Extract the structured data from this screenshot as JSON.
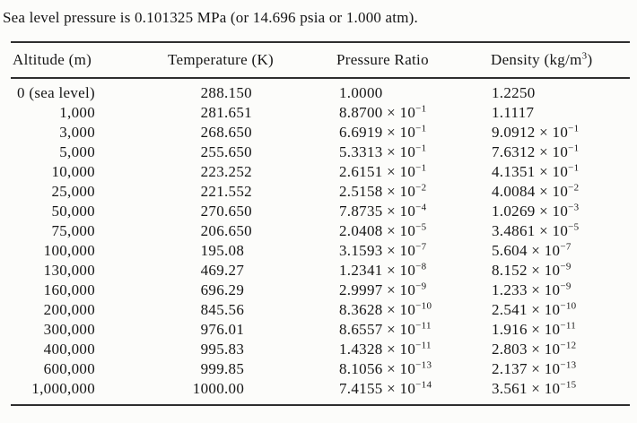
{
  "intro": "Sea level pressure is 0.101325 MPa (or 14.696 psia or 1.000 atm).",
  "table": {
    "times_ten": " × 10",
    "headers": [
      {
        "key": "altitude",
        "label": "Altitude (m)"
      },
      {
        "key": "temperature",
        "label": "Temperature (K)"
      },
      {
        "key": "pressure-ratio",
        "label": "Pressure Ratio"
      },
      {
        "key": "density",
        "label": "Density (kg/m",
        "sup": "3",
        "after": ")"
      }
    ],
    "rows": [
      {
        "altitude": "0 (sea level)",
        "temperature": "288.150",
        "pressure": {
          "m": "1.0000"
        },
        "density": {
          "m": "1.2250"
        }
      },
      {
        "altitude": "1,000",
        "temperature": "281.651",
        "pressure": {
          "m": "8.8700",
          "e": "−1"
        },
        "density": {
          "m": "1.1117"
        }
      },
      {
        "altitude": "3,000",
        "temperature": "268.650",
        "pressure": {
          "m": "6.6919",
          "e": "−1"
        },
        "density": {
          "m": "9.0912",
          "e": "−1"
        }
      },
      {
        "altitude": "5,000",
        "temperature": "255.650",
        "pressure": {
          "m": "5.3313",
          "e": "−1"
        },
        "density": {
          "m": "7.6312",
          "e": "−1"
        }
      },
      {
        "altitude": "10,000",
        "temperature": "223.252",
        "pressure": {
          "m": "2.6151",
          "e": "−1"
        },
        "density": {
          "m": "4.1351",
          "e": "−1"
        }
      },
      {
        "altitude": "25,000",
        "temperature": "221.552",
        "pressure": {
          "m": "2.5158",
          "e": "−2"
        },
        "density": {
          "m": "4.0084",
          "e": "−2"
        }
      },
      {
        "altitude": "50,000",
        "temperature": "270.650",
        "pressure": {
          "m": "7.8735",
          "e": "−4"
        },
        "density": {
          "m": "1.0269",
          "e": "−3"
        }
      },
      {
        "altitude": "75,000",
        "temperature": "206.650",
        "pressure": {
          "m": "2.0408",
          "e": "−5"
        },
        "density": {
          "m": "3.4861",
          "e": "−5"
        }
      },
      {
        "altitude": "100,000",
        "temperature": "195.08",
        "pressure": {
          "m": "3.1593",
          "e": "−7"
        },
        "density": {
          "m": "5.604",
          "e": "−7"
        }
      },
      {
        "altitude": "130,000",
        "temperature": "469.27",
        "pressure": {
          "m": "1.2341",
          "e": "−8"
        },
        "density": {
          "m": "8.152",
          "e": "−9"
        }
      },
      {
        "altitude": "160,000",
        "temperature": "696.29",
        "pressure": {
          "m": "2.9997",
          "e": "−9"
        },
        "density": {
          "m": "1.233",
          "e": "−9"
        }
      },
      {
        "altitude": "200,000",
        "temperature": "845.56",
        "pressure": {
          "m": "8.3628",
          "e": "−10"
        },
        "density": {
          "m": "2.541",
          "e": "−10"
        }
      },
      {
        "altitude": "300,000",
        "temperature": "976.01",
        "pressure": {
          "m": "8.6557",
          "e": "−11"
        },
        "density": {
          "m": "1.916",
          "e": "−11"
        }
      },
      {
        "altitude": "400,000",
        "temperature": "995.83",
        "pressure": {
          "m": "1.4328",
          "e": "−11"
        },
        "density": {
          "m": "2.803",
          "e": "−12"
        }
      },
      {
        "altitude": "600,000",
        "temperature": "999.85",
        "pressure": {
          "m": "8.1056",
          "e": "−13"
        },
        "density": {
          "m": "2.137",
          "e": "−13"
        }
      },
      {
        "altitude": "1,000,000",
        "temperature": "1000.00",
        "pressure": {
          "m": "7.4155",
          "e": "−14"
        },
        "density": {
          "m": "3.561",
          "e": "−15"
        }
      }
    ]
  }
}
